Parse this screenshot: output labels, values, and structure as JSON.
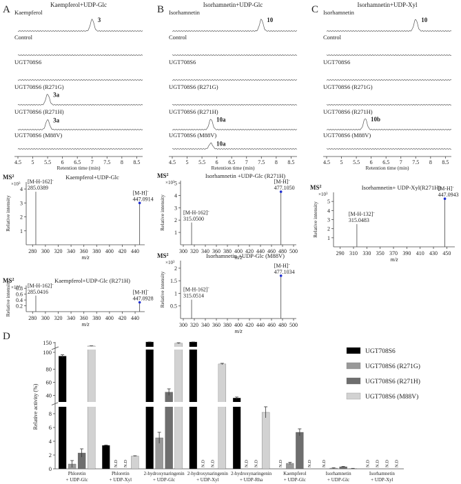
{
  "chart_data": {
    "chromatograms": [
      {
        "panel": "A",
        "title": "Kaempferol+UDP-Glc",
        "xlabel": "Retention time (min)",
        "xticks": [
          "4.5",
          "5",
          "5.5",
          "6",
          "6.5",
          "7",
          "7.5",
          "8",
          "8.5"
        ],
        "xlim": [
          4.5,
          8.7
        ],
        "traces": [
          {
            "label": "Kaempferol",
            "peak_label": "3",
            "peak_rt": 7.0,
            "peak_height": 1.0
          },
          {
            "label": "Control",
            "peak_label": "",
            "peak_rt": null,
            "peak_height": 0
          },
          {
            "label": "UGT708S6",
            "peak_label": "",
            "peak_rt": null,
            "peak_height": 0
          },
          {
            "label": "UGT708S6 (R271G)",
            "peak_label": "3a",
            "peak_rt": 5.5,
            "peak_height": 0.9
          },
          {
            "label": "UGT708S6 (R271H)",
            "peak_label": "3a",
            "peak_rt": 5.5,
            "peak_height": 0.85
          },
          {
            "label": "UGT708S6 (M88V)",
            "peak_label": "",
            "peak_rt": null,
            "peak_height": 0
          }
        ]
      },
      {
        "panel": "B",
        "title": "Isorhamnetin+UDP-Glc",
        "xlabel": "Retention time (min)",
        "xticks": [
          "4.5",
          "5",
          "5.5",
          "6",
          "6.5",
          "7",
          "7.5",
          "8",
          "8.5"
        ],
        "xlim": [
          4.5,
          8.7
        ],
        "traces": [
          {
            "label": "Isorhamnetin",
            "peak_label": "10",
            "peak_rt": 7.5,
            "peak_height": 1.0
          },
          {
            "label": "Control",
            "peak_label": "",
            "peak_rt": null,
            "peak_height": 0
          },
          {
            "label": "UGT708S6",
            "peak_label": "",
            "peak_rt": null,
            "peak_height": 0
          },
          {
            "label": "UGT708S6 (R271G)",
            "peak_label": "",
            "peak_rt": null,
            "peak_height": 0
          },
          {
            "label": "UGT708S6 (R271H)",
            "peak_label": "10a",
            "peak_rt": 5.8,
            "peak_height": 0.9
          },
          {
            "label": "UGT708S6 (M88V)",
            "peak_label": "10a",
            "peak_rt": 5.8,
            "peak_height": 0.5
          }
        ]
      },
      {
        "panel": "C",
        "title": "Isorhamnetin+UDP-Xyl",
        "xlabel": "Retention time (min)",
        "xticks": [
          "4.5",
          "5",
          "5.5",
          "6",
          "6.5",
          "7",
          "7.5",
          "8",
          "8.5"
        ],
        "xlim": [
          4.5,
          8.7
        ],
        "traces": [
          {
            "label": "Isorhamnetin",
            "peak_label": "10",
            "peak_rt": 7.5,
            "peak_height": 1.0
          },
          {
            "label": "Control",
            "peak_label": "",
            "peak_rt": null,
            "peak_height": 0
          },
          {
            "label": "UGT708S6",
            "peak_label": "",
            "peak_rt": null,
            "peak_height": 0
          },
          {
            "label": "UGT708S6 (R271G)",
            "peak_label": "",
            "peak_rt": null,
            "peak_height": 0
          },
          {
            "label": "UGT708S6 (R271H)",
            "peak_label": "10b",
            "peak_rt": 5.8,
            "peak_height": 0.95
          },
          {
            "label": "UGT708S6 (M88V)",
            "peak_label": "",
            "peak_rt": null,
            "peak_height": 0
          }
        ]
      }
    ],
    "mass_spectra": [
      {
        "id": "ms-a1",
        "ms_label": "MS",
        "ms_sup": "2",
        "exp_label": "×10",
        "exp_sup": "3",
        "title": "Kaempferol+UDP-Glc",
        "ylabel": "Relative intensity",
        "xlabel": "m/z",
        "ylim": [
          0,
          4.5
        ],
        "yticks": [
          1,
          2,
          3,
          4
        ],
        "ytick_labels": [
          "1",
          "2",
          "3",
          "4"
        ],
        "xlim": [
          270,
          455
        ],
        "xticks": [
          280,
          300,
          320,
          340,
          360,
          380,
          400,
          420,
          440
        ],
        "peaks": [
          {
            "mz": 285.0389,
            "height": 3.8,
            "ion": "[M-H-162]",
            "ion_sup": "-",
            "mz_text": "285.0389"
          },
          {
            "mz": 447.0914,
            "height": 3.0,
            "ion": "[M-H]",
            "ion_sup": "-",
            "mz_text": "447.0914"
          }
        ]
      },
      {
        "id": "ms-b1",
        "ms_label": "MS",
        "ms_sup": "2",
        "exp_label": "×10",
        "exp_sup": "3",
        "title": "Isorhamnetin +UDP-Glc (R271H)",
        "ylabel": "Relative intensity",
        "xlabel": "m/z",
        "ylim": [
          0,
          5.2
        ],
        "yticks": [
          1,
          2,
          3,
          4,
          5
        ],
        "ytick_labels": [
          "1",
          "2",
          "3",
          "4",
          "5"
        ],
        "xlim": [
          295,
          505
        ],
        "xticks": [
          300,
          320,
          340,
          360,
          380,
          400,
          420,
          440,
          460,
          480,
          500
        ],
        "peaks": [
          {
            "mz": 315.05,
            "height": 1.8,
            "ion": "[M-H-162]",
            "ion_sup": "-",
            "mz_text": "315.0500"
          },
          {
            "mz": 477.105,
            "height": 4.3,
            "ion": "[M-H]",
            "ion_sup": "-",
            "mz_text": "477.1050"
          }
        ]
      },
      {
        "id": "ms-c1",
        "ms_label": "MS",
        "ms_sup": "2",
        "exp_label": "×10",
        "exp_sup": "3",
        "title": "Isorhamnetin+ UDP-Xyl(R271H)",
        "ylabel": "Relative intensity",
        "xlabel": "m/z",
        "ylim": [
          0,
          6
        ],
        "yticks": [
          1,
          2,
          3,
          4,
          5
        ],
        "ytick_labels": [
          "1",
          "2",
          "3",
          "4",
          "5"
        ],
        "xlim": [
          280,
          462
        ],
        "xticks": [
          290,
          310,
          330,
          350,
          370,
          390,
          410,
          430,
          450
        ],
        "peaks": [
          {
            "mz": 315.0483,
            "height": 2.5,
            "ion": "[M-H-132]",
            "ion_sup": "-",
            "mz_text": "315.0483"
          },
          {
            "mz": 447.0943,
            "height": 5.3,
            "ion": "[M-H]",
            "ion_sup": "-",
            "mz_text": "447.0943"
          }
        ]
      },
      {
        "id": "ms-a2",
        "ms_label": "MS",
        "ms_sup": "2",
        "exp_label": "×10",
        "exp_sup": "4",
        "title": "Kaempferol+UDP-Glc (R271H)",
        "ylabel": "Relative intensity",
        "xlabel": "m/z",
        "ylim": [
          0,
          0.9
        ],
        "yticks": [
          0.2,
          0.4,
          0.6,
          0.8
        ],
        "ytick_labels": [
          "0.2",
          "0.4",
          "0.6",
          "0.8"
        ],
        "xlim": [
          270,
          455
        ],
        "xticks": [
          280,
          300,
          320,
          340,
          360,
          380,
          400,
          420,
          440
        ],
        "peaks": [
          {
            "mz": 285.0416,
            "height": 0.55,
            "ion": "[M-H-162]",
            "ion_sup": "-",
            "mz_text": "285.0416"
          },
          {
            "mz": 447.0928,
            "height": 0.32,
            "ion": "[M-H]",
            "ion_sup": "-",
            "mz_text": "447.0928"
          }
        ]
      },
      {
        "id": "ms-b2",
        "ms_label": "MS",
        "ms_sup": "2",
        "exp_label": "×10",
        "exp_sup": "3",
        "title": "Isorhamnetin +UDP-Glc (M88V)",
        "ylabel": "Relative intensity",
        "xlabel": "m/z",
        "ylim": [
          0,
          2.3
        ],
        "yticks": [
          0.5,
          1,
          1.5,
          2
        ],
        "ytick_labels": [
          "0.5",
          "1",
          "1.5",
          "2"
        ],
        "xlim": [
          295,
          505
        ],
        "xticks": [
          300,
          320,
          340,
          360,
          380,
          400,
          420,
          440,
          460,
          480,
          500
        ],
        "peaks": [
          {
            "mz": 315.0514,
            "height": 0.75,
            "ion": "[M-H-162]",
            "ion_sup": "-",
            "mz_text": "315.0514"
          },
          {
            "mz": 477.1034,
            "height": 1.7,
            "ion": "[M-H]",
            "ion_sup": "-",
            "mz_text": "477.1034"
          }
        ]
      }
    ],
    "bar_chart": {
      "panel": "D",
      "type": "bar",
      "ylabel": "Relative activity (%)",
      "yticks": [
        "0",
        "2",
        "4",
        "6",
        "8",
        "40",
        "60",
        "80",
        "100",
        "150"
      ],
      "categories": [
        [
          "Phloretin",
          "+ UDP-Glc"
        ],
        [
          "Phloretin",
          "+ UDP-Xyl"
        ],
        [
          "2-hydroxynaringenin",
          "+ UDP-Glc"
        ],
        [
          "2-hydroxynaringenin",
          "+ UDP-Xyl"
        ],
        [
          "2-hydroxynaringenin",
          "+ UDP-Rha"
        ],
        [
          "Kaempferol",
          "+ UDP-Glc"
        ],
        [
          "Isorhamnetin",
          "+ UDP-Glc"
        ],
        [
          "Isorhamnetin",
          "+ UDP-Xyl"
        ]
      ],
      "nd_label": "N.D",
      "series": [
        {
          "name": "UGT708S6",
          "color": "#000000",
          "values": [
            100,
            3.4,
            160,
            160,
            36,
            null,
            null,
            null
          ],
          "errors": [
            2,
            0.05,
            1,
            1,
            1.5,
            0,
            0,
            0
          ]
        },
        {
          "name": "UGT708S6 (R271G)",
          "color": "#999999",
          "values": [
            0.7,
            null,
            4.5,
            null,
            null,
            0.8,
            0.1,
            null
          ],
          "errors": [
            0.5,
            0,
            0.8,
            0,
            0,
            0.15,
            0.05,
            0
          ]
        },
        {
          "name": "UGT708S6 (R271H)",
          "color": "#6e6e6e",
          "values": [
            2.3,
            null,
            45,
            null,
            null,
            5.3,
            0.3,
            null
          ],
          "errors": [
            0.6,
            0,
            5,
            0,
            0,
            0.5,
            0.05,
            0
          ]
        },
        {
          "name": "UGT708S6 (M88V)",
          "color": "#d2d2d2",
          "values": [
            118,
            1.85,
            147,
            88,
            8.2,
            null,
            0.05,
            null
          ],
          "errors": [
            2,
            0.05,
            5,
            1,
            0.8,
            0,
            0.02,
            0
          ]
        }
      ]
    }
  }
}
